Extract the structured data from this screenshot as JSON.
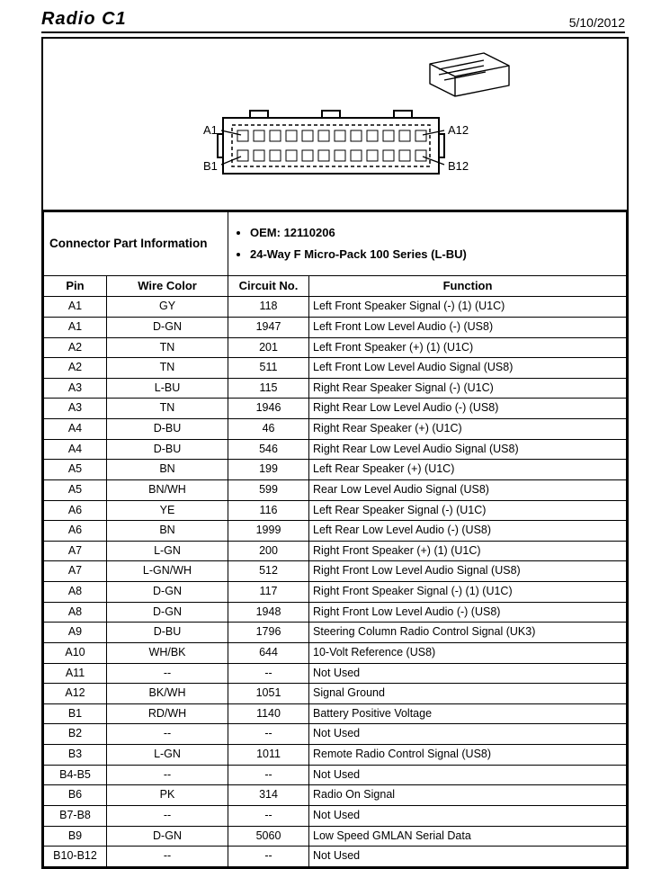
{
  "header": {
    "title": "Radio C1",
    "date": "5/10/2012"
  },
  "diagram": {
    "labels": {
      "a1": "A1",
      "a12": "A12",
      "b1": "B1",
      "b12": "B12"
    }
  },
  "cpi": {
    "label": "Connector Part Information",
    "lines": [
      "OEM: 12110206",
      "24-Way F Micro-Pack 100 Series (L-BU)"
    ]
  },
  "cols": [
    "Pin",
    "Wire Color",
    "Circuit No.",
    "Function"
  ],
  "rows": [
    [
      "A1",
      "GY",
      "118",
      "Left Front Speaker Signal (-) (1) (U1C)"
    ],
    [
      "A1",
      "D-GN",
      "1947",
      "Left Front Low Level Audio (-) (US8)"
    ],
    [
      "A2",
      "TN",
      "201",
      "Left Front Speaker (+) (1) (U1C)"
    ],
    [
      "A2",
      "TN",
      "511",
      "Left Front Low Level Audio Signal (US8)"
    ],
    [
      "A3",
      "L-BU",
      "115",
      "Right Rear Speaker Signal (-) (U1C)"
    ],
    [
      "A3",
      "TN",
      "1946",
      "Right Rear Low Level Audio (-) (US8)"
    ],
    [
      "A4",
      "D-BU",
      "46",
      "Right Rear Speaker (+) (U1C)"
    ],
    [
      "A4",
      "D-BU",
      "546",
      "Right Rear Low Level Audio Signal (US8)"
    ],
    [
      "A5",
      "BN",
      "199",
      "Left Rear Speaker (+) (U1C)"
    ],
    [
      "A5",
      "BN/WH",
      "599",
      "Rear Low Level Audio Signal (US8)"
    ],
    [
      "A6",
      "YE",
      "116",
      "Left Rear Speaker Signal (-) (U1C)"
    ],
    [
      "A6",
      "BN",
      "1999",
      "Left Rear Low Level Audio (-) (US8)"
    ],
    [
      "A7",
      "L-GN",
      "200",
      "Right Front Speaker (+) (1) (U1C)"
    ],
    [
      "A7",
      "L-GN/WH",
      "512",
      "Right Front Low Level Audio Signal (US8)"
    ],
    [
      "A8",
      "D-GN",
      "117",
      "Right Front Speaker Signal (-) (1) (U1C)"
    ],
    [
      "A8",
      "D-GN",
      "1948",
      "Right Front Low Level Audio (-) (US8)"
    ],
    [
      "A9",
      "D-BU",
      "1796",
      "Steering Column Radio Control Signal (UK3)"
    ],
    [
      "A10",
      "WH/BK",
      "644",
      "10-Volt Reference (US8)"
    ],
    [
      "A11",
      "--",
      "--",
      "Not Used"
    ],
    [
      "A12",
      "BK/WH",
      "1051",
      "Signal Ground"
    ],
    [
      "B1",
      "RD/WH",
      "1140",
      "Battery Positive Voltage"
    ],
    [
      "B2",
      "--",
      "--",
      "Not Used"
    ],
    [
      "B3",
      "L-GN",
      "1011",
      "Remote Radio Control Signal (US8)"
    ],
    [
      "B4-B5",
      "--",
      "--",
      "Not Used"
    ],
    [
      "B6",
      "PK",
      "314",
      "Radio On Signal"
    ],
    [
      "B7-B8",
      "--",
      "--",
      "Not Used"
    ],
    [
      "B9",
      "D-GN",
      "5060",
      "Low Speed GMLAN Serial Data"
    ],
    [
      "B10-B12",
      "--",
      "--",
      "Not Used"
    ]
  ]
}
